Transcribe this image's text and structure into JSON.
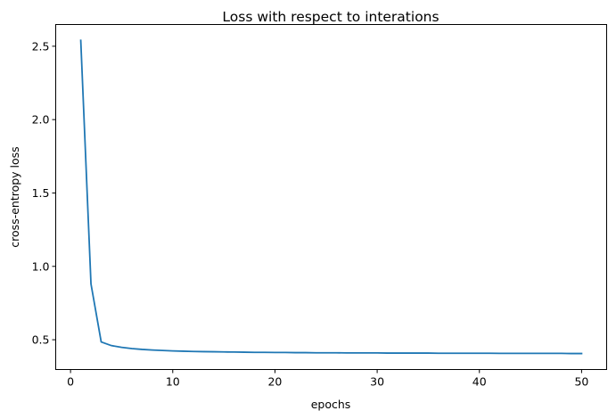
{
  "chart_data": {
    "type": "line",
    "title": "Loss with respect to interations",
    "xlabel": "epochs",
    "ylabel": "cross-entropy loss",
    "xlim": [
      -1.45,
      52.45
    ],
    "ylim": [
      0.297,
      2.648
    ],
    "xticks": [
      0,
      10,
      20,
      30,
      40,
      50
    ],
    "xtick_labels": [
      "0",
      "10",
      "20",
      "30",
      "40",
      "50"
    ],
    "yticks": [
      0.5,
      1.0,
      1.5,
      2.0,
      2.5
    ],
    "ytick_labels": [
      "0.5",
      "1.0",
      "1.5",
      "2.0",
      "2.5"
    ],
    "grid": false,
    "line_color": "#1f77b4",
    "series": [
      {
        "x": [
          1,
          2,
          3,
          4,
          5,
          6,
          7,
          8,
          9,
          10,
          11,
          12,
          13,
          14,
          15,
          16,
          17,
          18,
          19,
          20,
          21,
          22,
          23,
          24,
          25,
          26,
          27,
          28,
          29,
          30,
          31,
          32,
          33,
          34,
          35,
          36,
          37,
          38,
          39,
          40,
          41,
          42,
          43,
          44,
          45,
          46,
          47,
          48,
          49,
          50
        ],
        "values": [
          2.54,
          0.88,
          0.485,
          0.46,
          0.448,
          0.44,
          0.434,
          0.43,
          0.427,
          0.424,
          0.422,
          0.42,
          0.419,
          0.418,
          0.417,
          0.416,
          0.415,
          0.414,
          0.414,
          0.413,
          0.413,
          0.412,
          0.412,
          0.411,
          0.411,
          0.411,
          0.41,
          0.41,
          0.41,
          0.41,
          0.409,
          0.409,
          0.409,
          0.409,
          0.409,
          0.408,
          0.408,
          0.408,
          0.408,
          0.408,
          0.408,
          0.407,
          0.407,
          0.407,
          0.407,
          0.407,
          0.407,
          0.407,
          0.406,
          0.406
        ]
      }
    ]
  }
}
